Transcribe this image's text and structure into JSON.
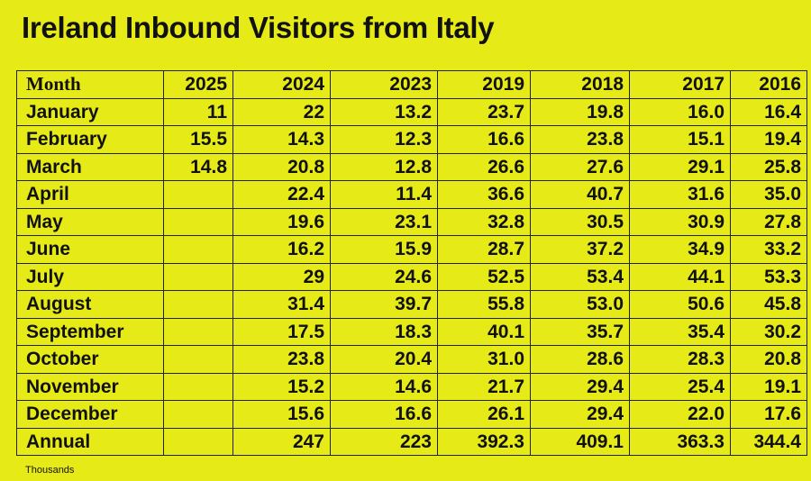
{
  "title": "Ireland Inbound Visitors from Italy",
  "footnote": "Thousands",
  "chart_data": {
    "type": "table",
    "title": "Ireland Inbound Visitors from Italy",
    "columns": [
      "Month",
      "2025",
      "2024",
      "2023",
      "2019",
      "2018",
      "2017",
      "2016"
    ],
    "rows": [
      [
        "January",
        "11",
        "22",
        "13.2",
        "23.7",
        "19.8",
        "16.0",
        "16.4"
      ],
      [
        "February",
        "15.5",
        "14.3",
        "12.3",
        "16.6",
        "23.8",
        "15.1",
        "19.4"
      ],
      [
        "March",
        "14.8",
        "20.8",
        "12.8",
        "26.6",
        "27.6",
        "29.1",
        "25.8"
      ],
      [
        "April",
        "",
        "22.4",
        "11.4",
        "36.6",
        "40.7",
        "31.6",
        "35.0"
      ],
      [
        "May",
        "",
        "19.6",
        "23.1",
        "32.8",
        "30.5",
        "30.9",
        "27.8"
      ],
      [
        "June",
        "",
        "16.2",
        "15.9",
        "28.7",
        "37.2",
        "34.9",
        "33.2"
      ],
      [
        "July",
        "",
        "29",
        "24.6",
        "52.5",
        "53.4",
        "44.1",
        "53.3"
      ],
      [
        "August",
        "",
        "31.4",
        "39.7",
        "55.8",
        "53.0",
        "50.6",
        "45.8"
      ],
      [
        "September",
        "",
        "17.5",
        "18.3",
        "40.1",
        "35.7",
        "35.4",
        "30.2"
      ],
      [
        "October",
        "",
        "23.8",
        "20.4",
        "31.0",
        "28.6",
        "28.3",
        "20.8"
      ],
      [
        "November",
        "",
        "15.2",
        "14.6",
        "21.7",
        "29.4",
        "25.4",
        "19.1"
      ],
      [
        "December",
        "",
        "15.6",
        "16.6",
        "26.1",
        "29.4",
        "22.0",
        "17.6"
      ],
      [
        "Annual",
        "",
        "247",
        "223",
        "392.3",
        "409.1",
        "363.3",
        "344.4"
      ]
    ],
    "unit_note": "Thousands"
  },
  "colors": {
    "background": "#e6ea16",
    "text": "#111111",
    "border": "#222222"
  }
}
